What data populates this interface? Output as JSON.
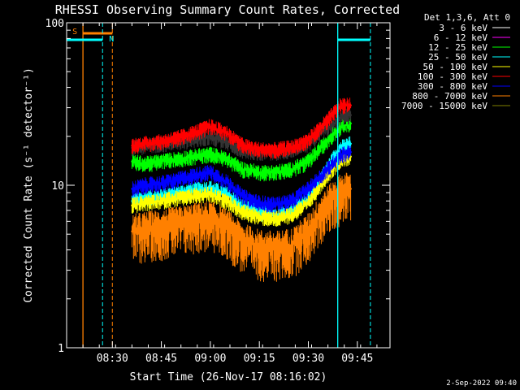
{
  "chart_data": {
    "type": "line",
    "title": "RHESSI Observing Summary Count Rates, Corrected",
    "xlabel": "Start Time (26-Nov-17 08:16:02)",
    "ylabel": "Corrected Count Rate (s⁻¹ detector⁻¹)",
    "y_scale": "log",
    "ylim": [
      1,
      100
    ],
    "xlim": [
      "08:16",
      "09:55"
    ],
    "x_ticks": [
      "08:30",
      "08:45",
      "09:00",
      "09:15",
      "09:30",
      "09:45"
    ],
    "y_ticks": [
      "1",
      "10",
      "100"
    ],
    "legend_header": "Det 1,3,6, Att 0",
    "legend_position": "top-right, outside plot",
    "footer_date": "2-Sep-2022 09:40",
    "series": [
      {
        "name": "3 - 6 keV",
        "color": "#000000",
        "points": [
          [
            "08:36",
            17
          ],
          [
            "08:40",
            17.5
          ],
          [
            "08:45",
            18
          ],
          [
            "08:50",
            18.5
          ],
          [
            "08:55",
            19
          ],
          [
            "09:00",
            20
          ],
          [
            "09:05",
            18.5
          ],
          [
            "09:10",
            16.5
          ],
          [
            "09:15",
            16
          ],
          [
            "09:20",
            16
          ],
          [
            "09:25",
            16.5
          ],
          [
            "09:30",
            18
          ],
          [
            "09:35",
            22
          ],
          [
            "09:38",
            24
          ],
          [
            "09:40",
            26
          ],
          [
            "09:43",
            27
          ]
        ]
      },
      {
        "name": "6 - 12 keV",
        "color": "#ff00ff",
        "points": []
      },
      {
        "name": "12 - 25 keV",
        "color": "#00ff00",
        "points": [
          [
            "08:36",
            14
          ],
          [
            "08:40",
            13.5
          ],
          [
            "08:45",
            14
          ],
          [
            "08:50",
            14.5
          ],
          [
            "08:55",
            15
          ],
          [
            "09:00",
            15.5
          ],
          [
            "09:05",
            14.5
          ],
          [
            "09:10",
            12.5
          ],
          [
            "09:15",
            12
          ],
          [
            "09:20",
            12
          ],
          [
            "09:25",
            12.5
          ],
          [
            "09:30",
            14
          ],
          [
            "09:35",
            18
          ],
          [
            "09:38",
            21
          ],
          [
            "09:40",
            23
          ],
          [
            "09:43",
            24
          ]
        ]
      },
      {
        "name": "25 - 50 keV",
        "color": "#00ffff",
        "points": [
          [
            "08:36",
            8
          ],
          [
            "08:40",
            8.3
          ],
          [
            "08:45",
            8.6
          ],
          [
            "08:50",
            9
          ],
          [
            "08:55",
            9.3
          ],
          [
            "09:00",
            9.6
          ],
          [
            "09:05",
            8.8
          ],
          [
            "09:10",
            7.3
          ],
          [
            "09:15",
            6.8
          ],
          [
            "09:20",
            6.6
          ],
          [
            "09:25",
            7
          ],
          [
            "09:30",
            8.5
          ],
          [
            "09:35",
            12
          ],
          [
            "09:38",
            15
          ],
          [
            "09:40",
            17
          ],
          [
            "09:43",
            18
          ]
        ]
      },
      {
        "name": "50 - 100 keV",
        "color": "#ffff00",
        "points": [
          [
            "08:36",
            7.5
          ],
          [
            "08:40",
            7.8
          ],
          [
            "08:45",
            8
          ],
          [
            "08:50",
            8.3
          ],
          [
            "08:55",
            8.6
          ],
          [
            "09:00",
            8.8
          ],
          [
            "09:05",
            8
          ],
          [
            "09:10",
            6.8
          ],
          [
            "09:15",
            6.4
          ],
          [
            "09:20",
            6.2
          ],
          [
            "09:25",
            6.6
          ],
          [
            "09:30",
            7.8
          ],
          [
            "09:35",
            11
          ],
          [
            "09:38",
            13
          ],
          [
            "09:40",
            14.5
          ],
          [
            "09:43",
            15
          ]
        ]
      },
      {
        "name": "100 - 300 keV",
        "color": "#ff0000",
        "points": [
          [
            "08:36",
            17.5
          ],
          [
            "08:40",
            18
          ],
          [
            "08:45",
            18.5
          ],
          [
            "08:50",
            19.5
          ],
          [
            "08:55",
            21
          ],
          [
            "09:00",
            23
          ],
          [
            "09:05",
            21
          ],
          [
            "09:10",
            17.5
          ],
          [
            "09:15",
            16.5
          ],
          [
            "09:20",
            16.5
          ],
          [
            "09:25",
            17
          ],
          [
            "09:30",
            19
          ],
          [
            "09:35",
            24
          ],
          [
            "09:38",
            28
          ],
          [
            "09:40",
            31
          ],
          [
            "09:43",
            31
          ]
        ]
      },
      {
        "name": "300 - 800 keV",
        "color": "#0000ff",
        "points": [
          [
            "08:36",
            9.5
          ],
          [
            "08:40",
            10
          ],
          [
            "08:45",
            10.3
          ],
          [
            "08:50",
            10.8
          ],
          [
            "08:55",
            11.5
          ],
          [
            "09:00",
            12
          ],
          [
            "09:05",
            10.5
          ],
          [
            "09:10",
            8.5
          ],
          [
            "09:15",
            7.8
          ],
          [
            "09:20",
            7.6
          ],
          [
            "09:25",
            8
          ],
          [
            "09:30",
            9.5
          ],
          [
            "09:35",
            12
          ],
          [
            "09:38",
            14
          ],
          [
            "09:40",
            15.5
          ],
          [
            "09:43",
            16
          ]
        ]
      },
      {
        "name": "800 - 7000 keV",
        "color": "#ff8000",
        "points": [
          [
            "08:36",
            5.2
          ],
          [
            "08:40",
            5.4
          ],
          [
            "08:45",
            5.6
          ],
          [
            "08:50",
            5.8
          ],
          [
            "08:55",
            6.1
          ],
          [
            "09:00",
            6.3
          ],
          [
            "09:05",
            5.6
          ],
          [
            "09:10",
            4.6
          ],
          [
            "09:15",
            4.2
          ],
          [
            "09:20",
            4.1
          ],
          [
            "09:25",
            4.3
          ],
          [
            "09:30",
            5.3
          ],
          [
            "09:35",
            7.5
          ],
          [
            "09:38",
            8.5
          ],
          [
            "09:40",
            9.3
          ],
          [
            "09:43",
            9.5
          ]
        ]
      },
      {
        "name": "7000 - 15000 keV",
        "color": "#808000",
        "points": []
      }
    ],
    "indicators": [
      {
        "label": "S",
        "color": "#ff8000",
        "times": [
          "08:21",
          "08:30"
        ]
      },
      {
        "label": "N",
        "color": "#00ffff",
        "times": [
          "08:27",
          "09:39",
          "09:49"
        ]
      }
    ]
  }
}
